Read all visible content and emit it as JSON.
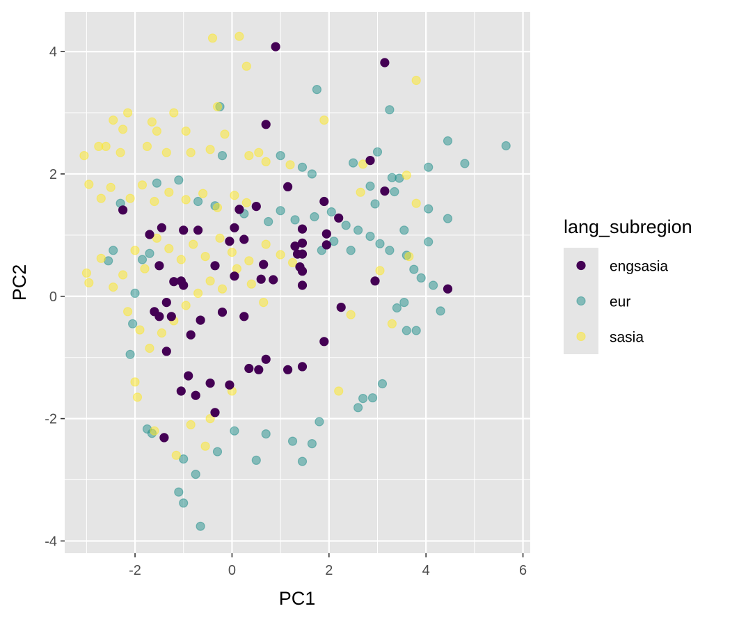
{
  "chart_data": {
    "type": "scatter",
    "title": "",
    "xlabel": "PC1",
    "ylabel": "PC2",
    "xlim": [
      -3.45,
      6.15
    ],
    "ylim": [
      -4.2,
      4.65
    ],
    "x_ticks": [
      -2,
      0,
      2,
      4,
      6
    ],
    "y_ticks": [
      -4,
      -2,
      0,
      2,
      4
    ],
    "x_tick_labels": [
      "-2",
      "0",
      "2",
      "4",
      "6"
    ],
    "y_tick_labels": [
      "-4",
      "-2",
      "0",
      "2",
      "4"
    ],
    "grid": true,
    "panel_background": "#e5e5e5",
    "grid_color": "#ffffff",
    "legend": {
      "title": "lang_subregion",
      "position": "right"
    },
    "series": [
      {
        "name": "engsasia",
        "color": "#440154",
        "opacity": 1.0,
        "points": [
          [
            0.9,
            4.08
          ],
          [
            3.15,
            3.82
          ],
          [
            0.7,
            2.81
          ],
          [
            2.85,
            2.22
          ],
          [
            1.15,
            1.79
          ],
          [
            3.15,
            1.72
          ],
          [
            1.9,
            1.55
          ],
          [
            -2.25,
            1.41
          ],
          [
            0.15,
            1.42
          ],
          [
            0.5,
            1.47
          ],
          [
            2.2,
            1.28
          ],
          [
            -1.45,
            1.12
          ],
          [
            -1.0,
            1.08
          ],
          [
            -0.7,
            1.08
          ],
          [
            0.05,
            1.12
          ],
          [
            1.45,
            1.1
          ],
          [
            -1.7,
            1.01
          ],
          [
            1.95,
            1.02
          ],
          [
            0.25,
            0.93
          ],
          [
            -0.05,
            0.9
          ],
          [
            1.3,
            0.82
          ],
          [
            1.45,
            0.87
          ],
          [
            1.95,
            0.84
          ],
          [
            1.35,
            0.69
          ],
          [
            1.45,
            0.69
          ],
          [
            -1.5,
            0.5
          ],
          [
            -0.35,
            0.5
          ],
          [
            0.65,
            0.52
          ],
          [
            1.4,
            0.48
          ],
          [
            1.45,
            0.41
          ],
          [
            0.05,
            0.33
          ],
          [
            0.6,
            0.28
          ],
          [
            0.85,
            0.27
          ],
          [
            -1.2,
            0.24
          ],
          [
            -1.05,
            0.25
          ],
          [
            -1.0,
            0.18
          ],
          [
            2.95,
            0.25
          ],
          [
            1.45,
            0.18
          ],
          [
            4.45,
            0.12
          ],
          [
            -1.35,
            -0.1
          ],
          [
            2.25,
            -0.18
          ],
          [
            -1.6,
            -0.25
          ],
          [
            -0.2,
            -0.26
          ],
          [
            -1.5,
            -0.33
          ],
          [
            -1.25,
            -0.33
          ],
          [
            0.25,
            -0.33
          ],
          [
            -0.65,
            -0.39
          ],
          [
            -0.85,
            -0.63
          ],
          [
            1.9,
            -0.74
          ],
          [
            -1.35,
            -0.9
          ],
          [
            0.7,
            -1.03
          ],
          [
            0.35,
            -1.18
          ],
          [
            0.55,
            -1.2
          ],
          [
            1.15,
            -1.2
          ],
          [
            1.45,
            -1.15
          ],
          [
            -0.9,
            -1.3
          ],
          [
            -0.45,
            -1.42
          ],
          [
            -0.05,
            -1.45
          ],
          [
            -1.05,
            -1.55
          ],
          [
            -0.75,
            -1.62
          ],
          [
            -0.35,
            -1.9
          ],
          [
            -1.4,
            -2.31
          ]
        ]
      },
      {
        "name": "eur",
        "color": "#21908c",
        "opacity": 0.5,
        "points": [
          [
            1.75,
            3.38
          ],
          [
            3.25,
            3.05
          ],
          [
            -0.25,
            3.1
          ],
          [
            4.45,
            2.54
          ],
          [
            5.65,
            2.46
          ],
          [
            3.0,
            2.36
          ],
          [
            4.8,
            2.17
          ],
          [
            2.5,
            2.18
          ],
          [
            4.05,
            2.11
          ],
          [
            -0.2,
            2.3
          ],
          [
            3.3,
            1.94
          ],
          [
            3.35,
            1.71
          ],
          [
            2.85,
            1.8
          ],
          [
            2.95,
            1.51
          ],
          [
            3.45,
            1.93
          ],
          [
            1.65,
            2.0
          ],
          [
            1.45,
            2.11
          ],
          [
            1.0,
            2.3
          ],
          [
            4.05,
            1.43
          ],
          [
            4.45,
            1.27
          ],
          [
            3.55,
            1.08
          ],
          [
            4.05,
            0.89
          ],
          [
            3.25,
            0.75
          ],
          [
            3.6,
            0.67
          ],
          [
            3.75,
            0.44
          ],
          [
            3.9,
            0.3
          ],
          [
            4.15,
            0.18
          ],
          [
            4.3,
            -0.24
          ],
          [
            3.6,
            -0.56
          ],
          [
            3.8,
            -0.56
          ],
          [
            3.4,
            -0.19
          ],
          [
            3.55,
            -0.1
          ],
          [
            2.6,
            -1.82
          ],
          [
            2.7,
            -1.67
          ],
          [
            2.9,
            -1.66
          ],
          [
            3.1,
            -1.43
          ],
          [
            1.45,
            -2.7
          ],
          [
            0.5,
            -2.68
          ],
          [
            -1.0,
            -2.66
          ],
          [
            -0.75,
            -2.91
          ],
          [
            -1.1,
            -3.2
          ],
          [
            -1.0,
            -3.38
          ],
          [
            -0.65,
            -3.76
          ],
          [
            -1.75,
            -2.17
          ],
          [
            -1.65,
            -2.24
          ],
          [
            -0.3,
            -2.54
          ],
          [
            0.05,
            -2.2
          ],
          [
            0.7,
            -2.25
          ],
          [
            1.25,
            -2.37
          ],
          [
            1.65,
            -2.41
          ],
          [
            1.8,
            -2.05
          ],
          [
            -2.45,
            0.75
          ],
          [
            -2.55,
            0.58
          ],
          [
            -2.3,
            1.52
          ],
          [
            -1.55,
            1.85
          ],
          [
            -1.1,
            1.9
          ],
          [
            -0.7,
            1.55
          ],
          [
            -0.35,
            1.48
          ],
          [
            0.25,
            1.35
          ],
          [
            0.75,
            1.22
          ],
          [
            1.0,
            1.4
          ],
          [
            1.3,
            1.25
          ],
          [
            1.7,
            1.3
          ],
          [
            2.05,
            1.38
          ],
          [
            2.35,
            1.16
          ],
          [
            2.6,
            1.08
          ],
          [
            2.85,
            0.98
          ],
          [
            3.05,
            0.86
          ],
          [
            2.45,
            0.75
          ],
          [
            2.1,
            0.9
          ],
          [
            1.85,
            0.75
          ],
          [
            -2.1,
            -0.95
          ],
          [
            -2.05,
            -0.45
          ],
          [
            -2.0,
            0.05
          ],
          [
            -1.85,
            0.6
          ],
          [
            -1.7,
            0.7
          ]
        ]
      },
      {
        "name": "sasia",
        "color": "#fde725",
        "opacity": 0.5,
        "points": [
          [
            0.15,
            4.25
          ],
          [
            -0.4,
            4.22
          ],
          [
            0.3,
            3.76
          ],
          [
            3.8,
            3.53
          ],
          [
            -2.15,
            3.0
          ],
          [
            -1.2,
            3.0
          ],
          [
            -0.3,
            3.1
          ],
          [
            1.9,
            2.88
          ],
          [
            -2.45,
            2.88
          ],
          [
            -2.25,
            2.73
          ],
          [
            -1.65,
            2.85
          ],
          [
            -1.55,
            2.7
          ],
          [
            -0.95,
            2.7
          ],
          [
            -0.15,
            2.65
          ],
          [
            -3.05,
            2.3
          ],
          [
            -2.75,
            2.45
          ],
          [
            -2.6,
            2.45
          ],
          [
            -2.3,
            2.35
          ],
          [
            -1.75,
            2.45
          ],
          [
            -1.35,
            2.35
          ],
          [
            -0.85,
            2.35
          ],
          [
            -0.45,
            2.4
          ],
          [
            0.35,
            2.3
          ],
          [
            0.55,
            2.35
          ],
          [
            0.7,
            2.2
          ],
          [
            1.2,
            2.15
          ],
          [
            2.7,
            2.16
          ],
          [
            3.6,
            1.98
          ],
          [
            3.8,
            1.52
          ],
          [
            2.65,
            1.7
          ],
          [
            -2.95,
            1.83
          ],
          [
            -2.7,
            1.6
          ],
          [
            -2.5,
            1.78
          ],
          [
            -2.1,
            1.6
          ],
          [
            -1.85,
            1.82
          ],
          [
            -1.6,
            1.55
          ],
          [
            -1.3,
            1.7
          ],
          [
            -0.95,
            1.58
          ],
          [
            -0.6,
            1.68
          ],
          [
            -0.3,
            1.45
          ],
          [
            0.05,
            1.65
          ],
          [
            0.3,
            1.53
          ],
          [
            -3.0,
            0.38
          ],
          [
            -2.95,
            0.22
          ],
          [
            -2.7,
            0.62
          ],
          [
            -2.45,
            0.15
          ],
          [
            -2.25,
            0.35
          ],
          [
            -2.0,
            0.75
          ],
          [
            -1.8,
            0.45
          ],
          [
            -1.55,
            0.95
          ],
          [
            -1.3,
            0.78
          ],
          [
            -1.05,
            0.6
          ],
          [
            -0.8,
            0.85
          ],
          [
            -0.55,
            0.65
          ],
          [
            -0.25,
            0.95
          ],
          [
            0.0,
            0.72
          ],
          [
            0.35,
            0.58
          ],
          [
            0.7,
            0.85
          ],
          [
            1.0,
            0.68
          ],
          [
            1.25,
            0.55
          ],
          [
            3.65,
            0.65
          ],
          [
            3.05,
            0.42
          ],
          [
            3.3,
            -0.45
          ],
          [
            -2.15,
            -0.25
          ],
          [
            -1.9,
            -0.55
          ],
          [
            -1.7,
            -0.85
          ],
          [
            -1.45,
            -0.6
          ],
          [
            -1.2,
            -0.4
          ],
          [
            -0.95,
            -0.15
          ],
          [
            -0.7,
            0.05
          ],
          [
            -0.45,
            0.25
          ],
          [
            -0.2,
            0.12
          ],
          [
            0.1,
            0.45
          ],
          [
            0.4,
            0.2
          ],
          [
            0.65,
            -0.1
          ],
          [
            -2.0,
            -1.4
          ],
          [
            -1.95,
            -1.65
          ],
          [
            -1.6,
            -2.2
          ],
          [
            -1.15,
            -2.6
          ],
          [
            -0.85,
            -2.1
          ],
          [
            -0.55,
            -2.45
          ],
          [
            -0.45,
            -2.0
          ],
          [
            0.0,
            -1.55
          ],
          [
            2.2,
            -1.55
          ],
          [
            2.45,
            -0.3
          ]
        ]
      }
    ]
  }
}
